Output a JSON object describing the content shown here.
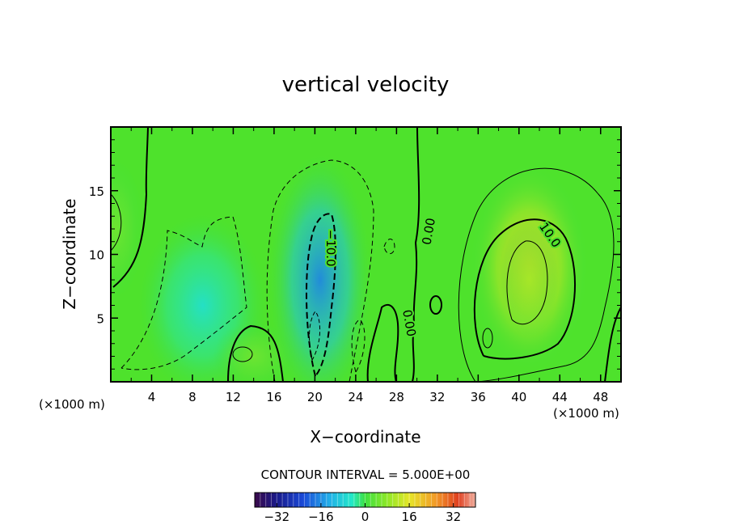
{
  "chart_data": {
    "type": "heatmap",
    "title": "vertical velocity",
    "xlabel": "X−coordinate",
    "ylabel": "Z−coordinate",
    "x_unit_left": "(×1000 m)",
    "x_unit_right": "(×1000 m)",
    "xlim": [
      0,
      50
    ],
    "ylim": [
      0,
      20
    ],
    "x_ticks": [
      4,
      8,
      12,
      16,
      20,
      24,
      28,
      32,
      36,
      40,
      44,
      48
    ],
    "y_ticks": [
      5,
      10,
      15
    ],
    "contour_interval_text": "CONTOUR INTERVAL = 5.000E+00",
    "contour_labels": [
      {
        "text": "−10.0",
        "x": 21.5,
        "y": 10.5,
        "rotate": 90
      },
      {
        "text": "0.00",
        "x": 31.2,
        "y": 11.8,
        "rotate": -80
      },
      {
        "text": "0.00",
        "x": 29.2,
        "y": 4.6,
        "rotate": 80
      },
      {
        "text": "10.0",
        "x": 43.0,
        "y": 11.5,
        "rotate": 55
      }
    ],
    "colorbar": {
      "range": [
        -40,
        40
      ],
      "ticks": [
        -32,
        -16,
        0,
        16,
        32
      ],
      "tick_labels": [
        "−32",
        "−16",
        "0",
        "16",
        "32"
      ]
    },
    "features": [
      {
        "name": "updraft",
        "x": 41,
        "z": 9,
        "sx": 3.2,
        "sz": 4.5,
        "value": 20
      },
      {
        "name": "updraft-core",
        "x": 41,
        "z": 8,
        "sx": 1.6,
        "sz": 2.5,
        "value": 10
      },
      {
        "name": "downdraft",
        "x": 20.5,
        "z": 8,
        "sx": 2.8,
        "sz": 5.5,
        "value": -16
      },
      {
        "name": "weak-downdraft",
        "x": 9,
        "z": 6,
        "sx": 3.5,
        "sz": 4.0,
        "value": -6
      },
      {
        "name": "left-edge-updraft",
        "x": 0.5,
        "z": 12,
        "sx": 1.5,
        "sz": 3.0,
        "value": 5
      },
      {
        "name": "low-updraft",
        "x": 14,
        "z": 2,
        "sx": 2.2,
        "sz": 1.5,
        "value": 5
      }
    ]
  }
}
